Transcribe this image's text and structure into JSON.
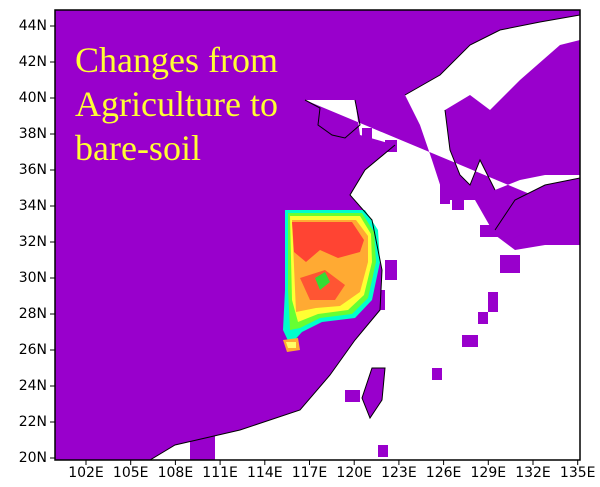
{
  "map": {
    "title_lines": [
      "Changes from",
      "Agriculture to",
      "bare-soil"
    ],
    "lat_labels": [
      "44N",
      "42N",
      "40N",
      "38N",
      "36N",
      "34N",
      "32N",
      "30N",
      "28N",
      "26N",
      "24N",
      "22N",
      "20N"
    ],
    "lon_labels": [
      "102E",
      "105E",
      "108E",
      "111E",
      "114E",
      "117E",
      "120E",
      "123E",
      "126E",
      "129E",
      "132E",
      "135E"
    ]
  }
}
